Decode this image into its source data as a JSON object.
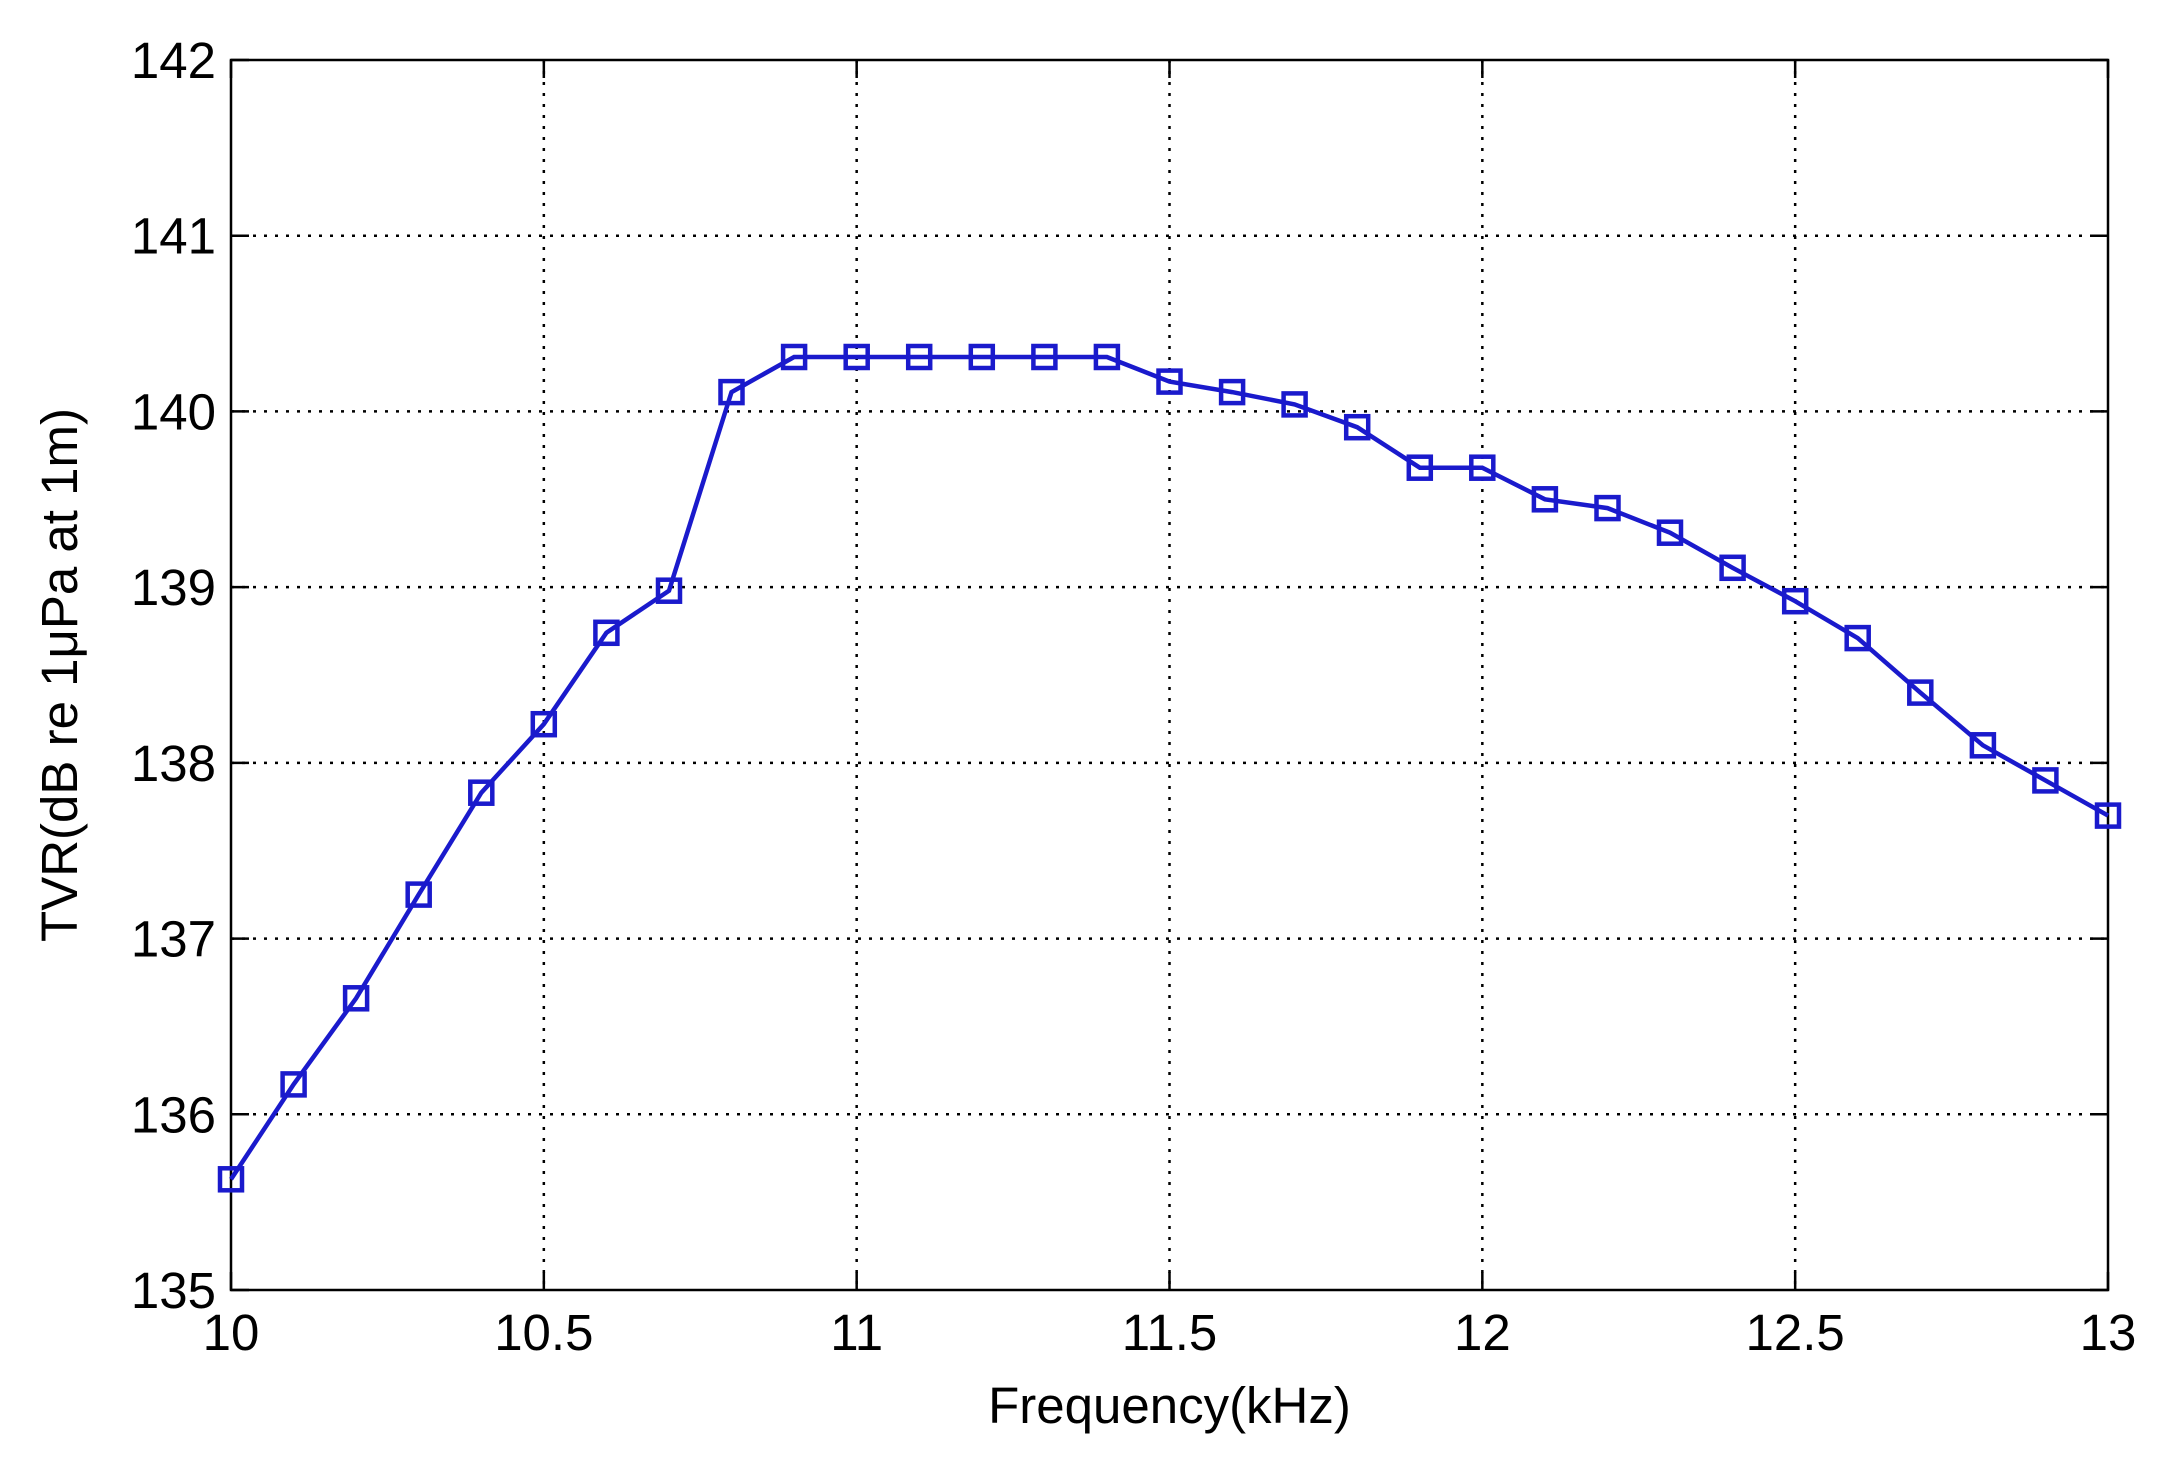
{
  "chart_data": {
    "type": "line",
    "xlabel": "Frequency(kHz)",
    "ylabel": "TVR(dB re 1μPa at 1m)",
    "xlim": [
      10,
      13
    ],
    "ylim": [
      135,
      142
    ],
    "xticks": [
      10,
      10.5,
      11,
      11.5,
      12,
      12.5,
      13
    ],
    "yticks": [
      135,
      136,
      137,
      138,
      139,
      140,
      141,
      142
    ],
    "xtick_labels": [
      "10",
      "10.5",
      "11",
      "11.5",
      "12",
      "12.5",
      "13"
    ],
    "ytick_labels": [
      "135",
      "136",
      "137",
      "138",
      "139",
      "140",
      "141",
      "142"
    ],
    "grid": true,
    "marker": "square",
    "color": "#1a1acc",
    "x": [
      10,
      10.1,
      10.2,
      10.3,
      10.4,
      10.5,
      10.6,
      10.7,
      10.8,
      10.9,
      11,
      11.1,
      11.2,
      11.3,
      11.4,
      11.5,
      11.6,
      11.7,
      11.8,
      11.9,
      12,
      12.1,
      12.2,
      12.3,
      12.4,
      12.5,
      12.6,
      12.7,
      12.8,
      12.9,
      13
    ],
    "y": [
      135.63,
      136.17,
      136.66,
      137.25,
      137.83,
      138.22,
      138.74,
      138.98,
      140.11,
      140.31,
      140.31,
      140.31,
      140.31,
      140.31,
      140.31,
      140.17,
      140.11,
      140.04,
      139.91,
      139.68,
      139.68,
      139.5,
      139.45,
      139.31,
      139.11,
      138.92,
      138.71,
      138.4,
      138.1,
      137.9,
      137.7
    ]
  }
}
